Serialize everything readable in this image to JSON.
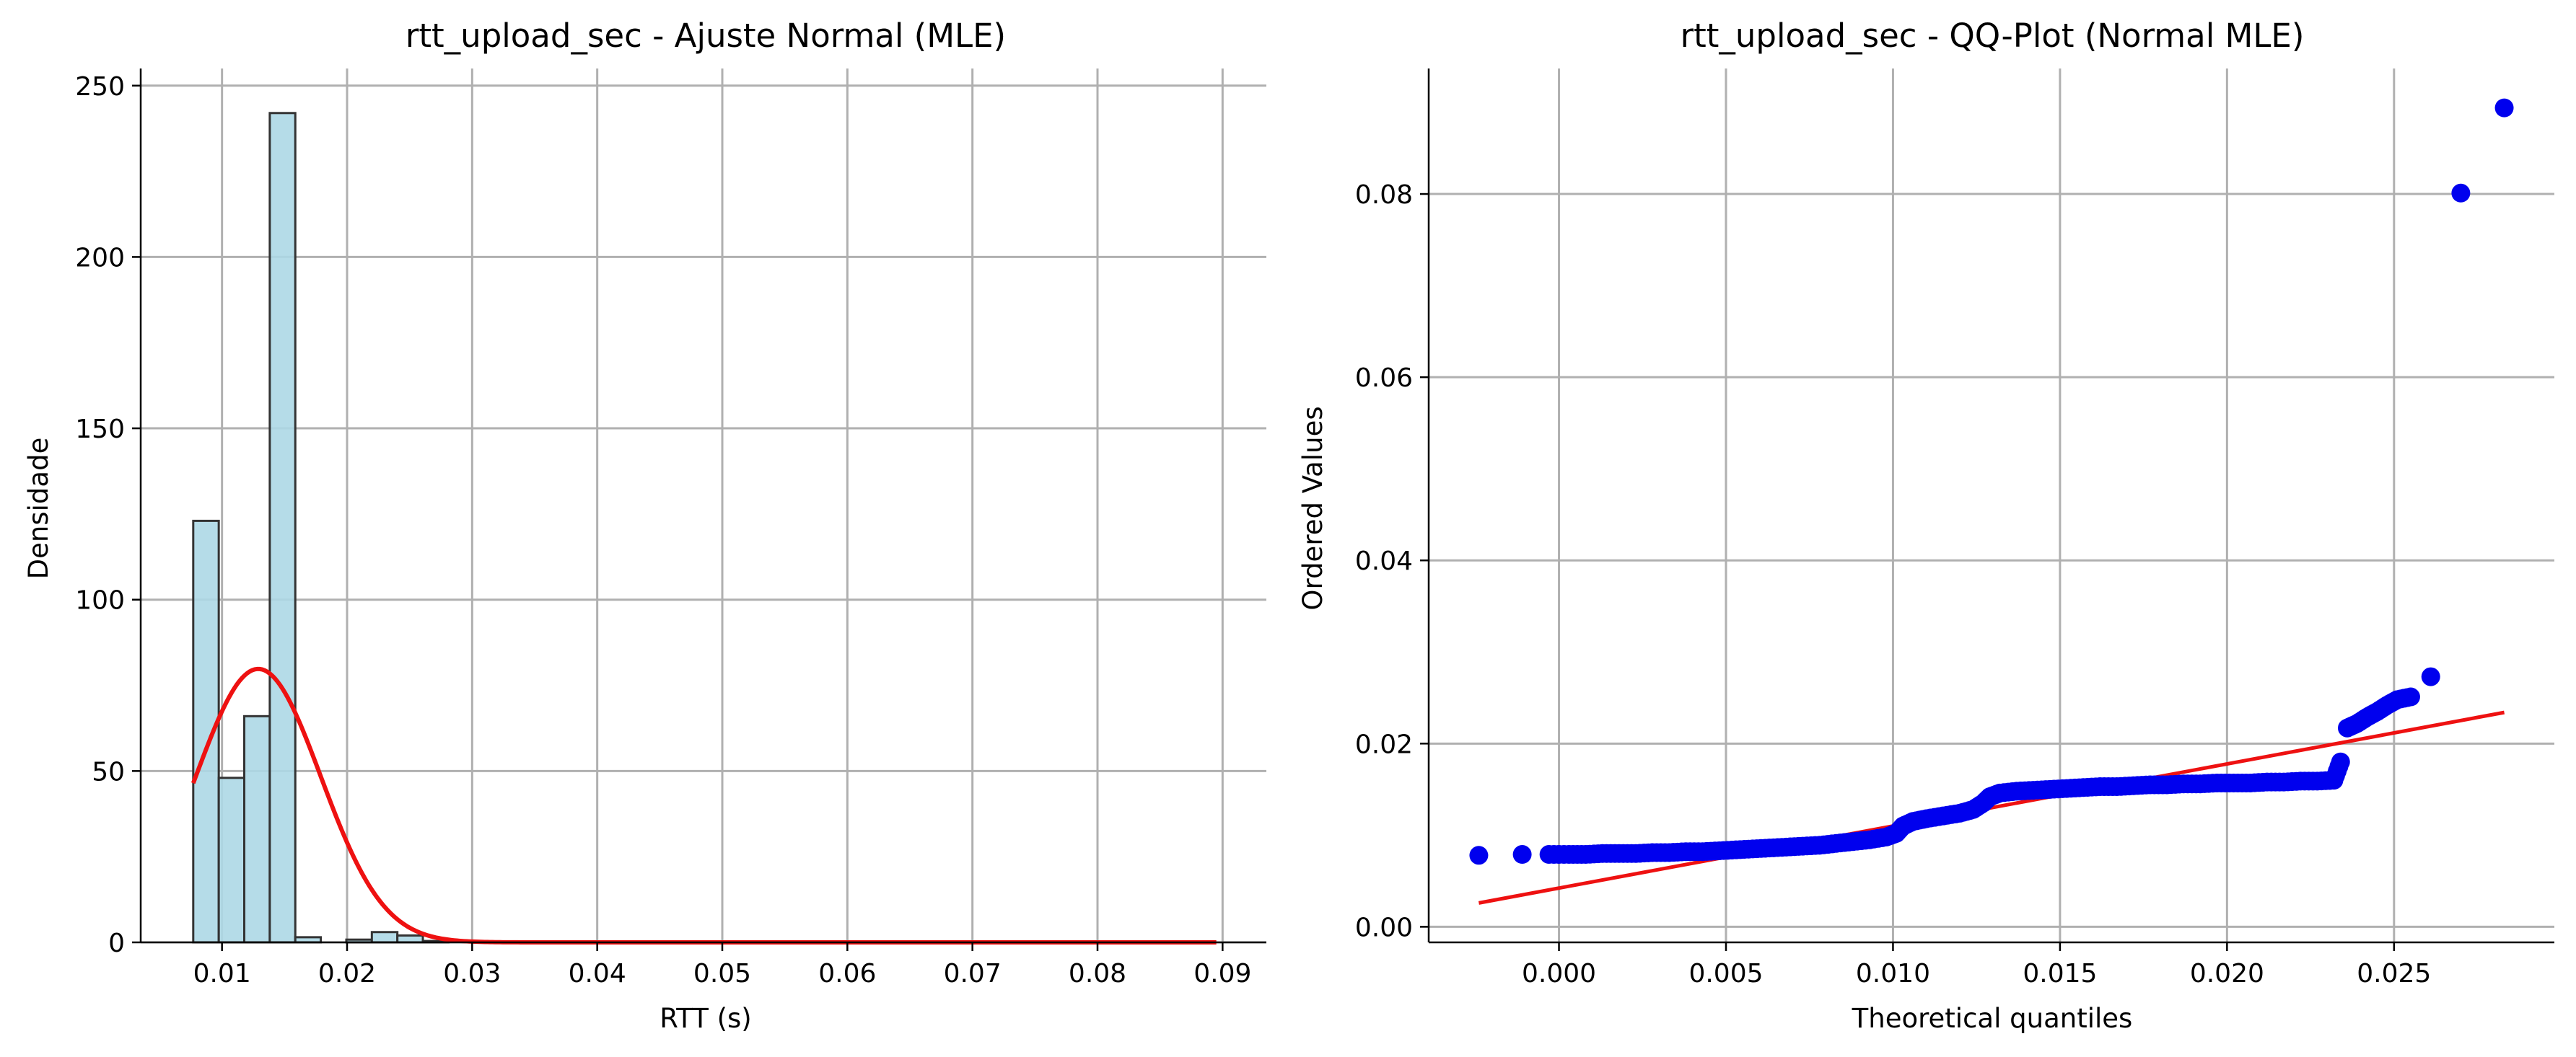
{
  "chart_data": [
    {
      "type": "bar",
      "title": "rtt_upload_sec - Ajuste Normal (MLE)",
      "xlabel": "RTT (s)",
      "ylabel": "Densidade",
      "xlim": [
        0.0035,
        0.0935
      ],
      "ylim": [
        0,
        255
      ],
      "xticks": [
        0.01,
        0.02,
        0.03,
        0.04,
        0.05,
        0.06,
        0.07,
        0.08,
        0.09
      ],
      "xtick_labels": [
        "0.01",
        "0.02",
        "0.03",
        "0.04",
        "0.05",
        "0.06",
        "0.07",
        "0.08",
        "0.09"
      ],
      "yticks": [
        0,
        50,
        100,
        150,
        200,
        250
      ],
      "ytick_labels": [
        "0",
        "50",
        "100",
        "150",
        "200",
        "250"
      ],
      "grid": true,
      "bin_width": 0.00204,
      "bins": [
        {
          "x0": 0.0077,
          "value": 123
        },
        {
          "x0": 0.00974,
          "value": 48
        },
        {
          "x0": 0.01178,
          "value": 66
        },
        {
          "x0": 0.01382,
          "value": 242
        },
        {
          "x0": 0.01586,
          "value": 1.5
        },
        {
          "x0": 0.0179,
          "value": 0
        },
        {
          "x0": 0.01994,
          "value": 0.8
        },
        {
          "x0": 0.02198,
          "value": 3
        },
        {
          "x0": 0.02402,
          "value": 2
        },
        {
          "x0": 0.02606,
          "value": 0.4
        },
        {
          "x0": 0.0791,
          "value": 0.3
        },
        {
          "x0": 0.08726,
          "value": 0.3
        }
      ],
      "fit_curve": {
        "distribution": "normal",
        "mean": 0.0129,
        "std": 0.005,
        "x_range": [
          0.0077,
          0.0895
        ],
        "color": "#ee1111"
      },
      "bar_color": "#add8e6",
      "bar_edge_color": "#333333"
    },
    {
      "type": "scatter",
      "title": "rtt_upload_sec - QQ-Plot (Normal MLE)",
      "xlabel": "Theoretical quantiles",
      "ylabel": "Ordered Values",
      "xlim": [
        -0.0039,
        0.0298
      ],
      "ylim": [
        -0.0017,
        0.0937
      ],
      "xticks": [
        0.0,
        0.005,
        0.01,
        0.015,
        0.02,
        0.025
      ],
      "xtick_labels": [
        "0.000",
        "0.005",
        "0.010",
        "0.015",
        "0.020",
        "0.025"
      ],
      "yticks": [
        0.0,
        0.02,
        0.04,
        0.06,
        0.08
      ],
      "ytick_labels": [
        "0.00",
        "0.02",
        "0.04",
        "0.06",
        "0.08"
      ],
      "grid": true,
      "points_color": "#0000ee",
      "points": [
        [
          -0.0024,
          0.0078
        ],
        [
          -0.0011,
          0.0079
        ],
        [
          -0.0003,
          0.0079
        ],
        [
          0.0003,
          0.0079
        ],
        [
          0.0008,
          0.0079
        ],
        [
          0.0013,
          0.008
        ],
        [
          0.0018,
          0.008
        ],
        [
          0.0023,
          0.008
        ],
        [
          0.0028,
          0.0081
        ],
        [
          0.0033,
          0.0081
        ],
        [
          0.0038,
          0.0082
        ],
        [
          0.0043,
          0.0082
        ],
        [
          0.0048,
          0.0083
        ],
        [
          0.0053,
          0.0084
        ],
        [
          0.0058,
          0.0085
        ],
        [
          0.0063,
          0.0086
        ],
        [
          0.0068,
          0.0087
        ],
        [
          0.0073,
          0.0088
        ],
        [
          0.0078,
          0.0089
        ],
        [
          0.0083,
          0.0091
        ],
        [
          0.0088,
          0.0093
        ],
        [
          0.0093,
          0.0095
        ],
        [
          0.0098,
          0.0098
        ],
        [
          0.0101,
          0.0102
        ],
        [
          0.0103,
          0.011
        ],
        [
          0.0106,
          0.0115
        ],
        [
          0.011,
          0.0118
        ],
        [
          0.0115,
          0.0121
        ],
        [
          0.012,
          0.0124
        ],
        [
          0.0124,
          0.0128
        ],
        [
          0.0127,
          0.0135
        ],
        [
          0.0129,
          0.0142
        ],
        [
          0.0132,
          0.0146
        ],
        [
          0.0137,
          0.0148
        ],
        [
          0.0142,
          0.0149
        ],
        [
          0.0147,
          0.015
        ],
        [
          0.0152,
          0.0151
        ],
        [
          0.0157,
          0.0152
        ],
        [
          0.0162,
          0.0153
        ],
        [
          0.0167,
          0.0153
        ],
        [
          0.0172,
          0.0154
        ],
        [
          0.0177,
          0.0155
        ],
        [
          0.0182,
          0.0155
        ],
        [
          0.0187,
          0.0156
        ],
        [
          0.0192,
          0.0156
        ],
        [
          0.0197,
          0.0157
        ],
        [
          0.0202,
          0.0157
        ],
        [
          0.0207,
          0.0157
        ],
        [
          0.0212,
          0.0158
        ],
        [
          0.0217,
          0.0158
        ],
        [
          0.0222,
          0.0159
        ],
        [
          0.0227,
          0.0159
        ],
        [
          0.0232,
          0.016
        ],
        [
          0.0234,
          0.018
        ],
        [
          0.0236,
          0.0217
        ],
        [
          0.0239,
          0.0222
        ],
        [
          0.0242,
          0.0229
        ],
        [
          0.0245,
          0.0235
        ],
        [
          0.0248,
          0.0242
        ],
        [
          0.0251,
          0.0248
        ],
        [
          0.0255,
          0.0251
        ],
        [
          0.0261,
          0.0273
        ],
        [
          0.027,
          0.0801
        ],
        [
          0.0283,
          0.0894
        ]
      ],
      "fit_line": {
        "x": [
          -0.0024,
          0.0283
        ],
        "y": [
          0.0026,
          0.0234
        ],
        "color": "#ee1111"
      }
    }
  ]
}
